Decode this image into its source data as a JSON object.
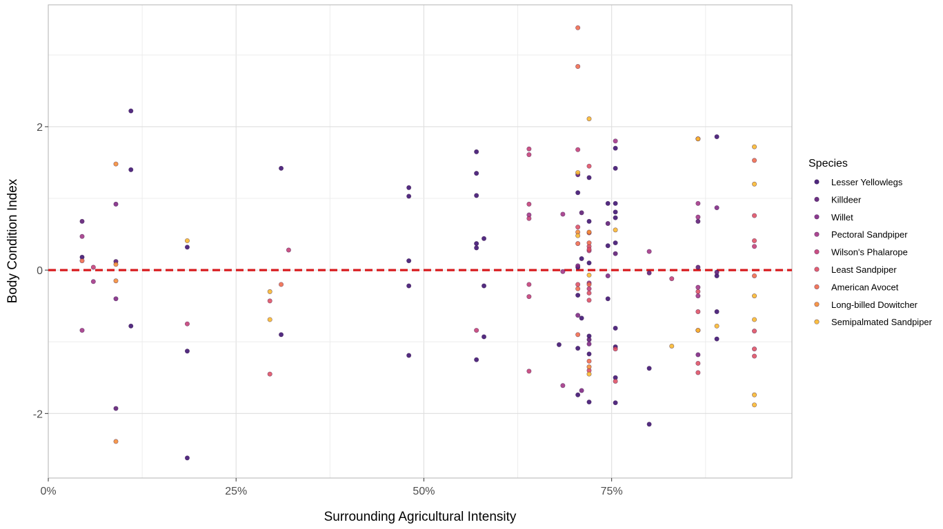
{
  "chart_data": {
    "type": "scatter",
    "xlabel": "Surrounding Agricultural Intensity",
    "ylabel": "Body Condition Index",
    "xlim": [
      0,
      0.99
    ],
    "ylim": [
      -2.9,
      3.7
    ],
    "x_ticks": [
      0,
      0.25,
      0.5,
      0.75
    ],
    "x_tick_labels": [
      "0%",
      "25%",
      "50%",
      "75%"
    ],
    "y_ticks": [
      -2,
      0,
      2
    ],
    "y_tick_labels": [
      "-2",
      "0",
      "2"
    ],
    "grid": true,
    "reference_line": {
      "y": 0,
      "style": "dashed",
      "color": "#d7191c"
    },
    "legend": {
      "title": "Species",
      "placement": "right"
    },
    "series": [
      {
        "name": "Lesser Yellowlegs",
        "color": "#3b0f70",
        "points": [
          [
            0.045,
            0.18
          ],
          [
            0.11,
            2.22
          ],
          [
            0.11,
            1.4
          ],
          [
            0.11,
            -0.78
          ],
          [
            0.185,
            0.32
          ],
          [
            0.185,
            -1.13
          ],
          [
            0.185,
            -2.62
          ],
          [
            0.31,
            1.42
          ],
          [
            0.31,
            -0.9
          ],
          [
            0.48,
            1.15
          ],
          [
            0.48,
            1.03
          ],
          [
            0.48,
            0.13
          ],
          [
            0.48,
            -0.22
          ],
          [
            0.48,
            -1.19
          ],
          [
            0.57,
            1.65
          ],
          [
            0.57,
            1.35
          ],
          [
            0.57,
            1.04
          ],
          [
            0.57,
            0.37
          ],
          [
            0.57,
            0.31
          ],
          [
            0.57,
            -1.25
          ],
          [
            0.58,
            0.44
          ],
          [
            0.58,
            -0.22
          ],
          [
            0.58,
            -0.93
          ],
          [
            0.68,
            -1.04
          ],
          [
            0.705,
            1.08
          ],
          [
            0.705,
            0.04
          ],
          [
            0.705,
            -0.35
          ],
          [
            0.705,
            -1.09
          ],
          [
            0.705,
            -1.74
          ],
          [
            0.71,
            -0.67
          ],
          [
            0.71,
            0.16
          ],
          [
            0.72,
            1.29
          ],
          [
            0.72,
            0.68
          ],
          [
            0.72,
            0.1
          ],
          [
            0.72,
            -0.92
          ],
          [
            0.72,
            -1.17
          ],
          [
            0.72,
            -1.84
          ],
          [
            0.745,
            0.93
          ],
          [
            0.745,
            0.34
          ],
          [
            0.745,
            -0.4
          ],
          [
            0.755,
            1.7
          ],
          [
            0.755,
            1.42
          ],
          [
            0.755,
            0.93
          ],
          [
            0.755,
            0.81
          ],
          [
            0.755,
            0.73
          ],
          [
            0.755,
            0.38
          ],
          [
            0.755,
            -0.81
          ],
          [
            0.755,
            -1.07
          ],
          [
            0.755,
            -1.5
          ],
          [
            0.755,
            -1.85
          ],
          [
            0.8,
            -1.37
          ],
          [
            0.8,
            -2.15
          ],
          [
            0.89,
            1.86
          ],
          [
            0.89,
            -0.08
          ],
          [
            0.89,
            -0.58
          ],
          [
            0.89,
            -0.96
          ]
        ]
      },
      {
        "name": "Killdeer",
        "color": "#5c1a74",
        "points": [
          [
            0.045,
            0.68
          ],
          [
            0.09,
            0.12
          ],
          [
            0.09,
            -1.93
          ],
          [
            0.705,
            1.33
          ],
          [
            0.71,
            0.8
          ],
          [
            0.72,
            -0.97
          ],
          [
            0.745,
            0.65
          ],
          [
            0.755,
            0.23
          ],
          [
            0.8,
            -0.04
          ],
          [
            0.865,
            0.04
          ],
          [
            0.89,
            -0.03
          ],
          [
            0.865,
            0.68
          ]
        ]
      },
      {
        "name": "Willet",
        "color": "#7e2482",
        "points": [
          [
            0.09,
            0.92
          ],
          [
            0.09,
            -0.4
          ],
          [
            0.705,
            0.06
          ],
          [
            0.705,
            -0.63
          ],
          [
            0.71,
            -1.68
          ],
          [
            0.72,
            -1.03
          ],
          [
            0.745,
            -0.08
          ],
          [
            0.865,
            -1.18
          ],
          [
            0.89,
            0.87
          ]
        ]
      },
      {
        "name": "Pectoral Sandpiper",
        "color": "#a23385",
        "points": [
          [
            0.045,
            0.47
          ],
          [
            0.045,
            -0.84
          ],
          [
            0.06,
            -0.16
          ],
          [
            0.64,
            0.77
          ],
          [
            0.685,
            0.78
          ],
          [
            0.685,
            -0.02
          ],
          [
            0.685,
            -1.61
          ],
          [
            0.72,
            -0.18
          ],
          [
            0.755,
            1.8
          ],
          [
            0.8,
            0.26
          ],
          [
            0.865,
            0.93
          ],
          [
            0.865,
            0.74
          ],
          [
            0.865,
            -0.24
          ],
          [
            0.865,
            -0.36
          ]
        ]
      },
      {
        "name": "Wilson's Phalarope",
        "color": "#c43c75",
        "points": [
          [
            0.06,
            0.04
          ],
          [
            0.185,
            -0.75
          ],
          [
            0.32,
            0.28
          ],
          [
            0.57,
            -0.84
          ],
          [
            0.64,
            1.69
          ],
          [
            0.64,
            1.61
          ],
          [
            0.64,
            0.92
          ],
          [
            0.64,
            0.72
          ],
          [
            0.64,
            -0.2
          ],
          [
            0.64,
            -0.37
          ],
          [
            0.64,
            -1.41
          ],
          [
            0.705,
            1.68
          ],
          [
            0.72,
            0.27
          ],
          [
            0.72,
            -0.26
          ],
          [
            0.83,
            -0.12
          ],
          [
            0.94,
            0.33
          ]
        ]
      },
      {
        "name": "Least Sandpiper",
        "color": "#df4e62",
        "points": [
          [
            0.295,
            -0.43
          ],
          [
            0.295,
            -1.45
          ],
          [
            0.705,
            0.6
          ],
          [
            0.705,
            -0.2
          ],
          [
            0.72,
            1.45
          ],
          [
            0.72,
            0.33
          ],
          [
            0.72,
            0.29
          ],
          [
            0.72,
            -0.32
          ],
          [
            0.72,
            -0.42
          ],
          [
            0.72,
            -1.4
          ],
          [
            0.755,
            -1.1
          ],
          [
            0.755,
            -1.55
          ],
          [
            0.865,
            -0.3
          ],
          [
            0.865,
            -0.58
          ],
          [
            0.865,
            -1.3
          ],
          [
            0.865,
            -1.43
          ],
          [
            0.94,
            0.76
          ],
          [
            0.94,
            0.41
          ],
          [
            0.94,
            -0.85
          ],
          [
            0.94,
            -1.1
          ],
          [
            0.94,
            -1.2
          ]
        ]
      },
      {
        "name": "American Avocet",
        "color": "#f06a4a",
        "points": [
          [
            0.045,
            0.13
          ],
          [
            0.31,
            -0.2
          ],
          [
            0.705,
            2.84
          ],
          [
            0.705,
            3.38
          ],
          [
            0.705,
            0.37
          ],
          [
            0.705,
            -0.9
          ],
          [
            0.705,
            -0.26
          ],
          [
            0.72,
            -1.27
          ],
          [
            0.72,
            -0.2
          ],
          [
            0.72,
            0.38
          ],
          [
            0.72,
            0.52
          ],
          [
            0.865,
            1.83
          ],
          [
            0.865,
            -0.84
          ],
          [
            0.94,
            1.53
          ],
          [
            0.94,
            -0.08
          ]
        ]
      },
      {
        "name": "Long-billed Dowitcher",
        "color": "#f58c35",
        "points": [
          [
            0.09,
            1.48
          ],
          [
            0.09,
            0.08
          ],
          [
            0.09,
            -0.15
          ],
          [
            0.09,
            -2.39
          ],
          [
            0.705,
            0.53
          ],
          [
            0.72,
            -1.35
          ],
          [
            0.72,
            0.53
          ]
        ]
      },
      {
        "name": "Semipalmated Sandpiper",
        "color": "#f9b82c",
        "points": [
          [
            0.185,
            0.41
          ],
          [
            0.295,
            -0.3
          ],
          [
            0.295,
            -0.69
          ],
          [
            0.705,
            1.36
          ],
          [
            0.705,
            0.48
          ],
          [
            0.72,
            2.11
          ],
          [
            0.72,
            -0.07
          ],
          [
            0.72,
            -1.45
          ],
          [
            0.755,
            0.56
          ],
          [
            0.83,
            -1.06
          ],
          [
            0.865,
            1.83
          ],
          [
            0.865,
            -0.84
          ],
          [
            0.89,
            -0.78
          ],
          [
            0.94,
            1.72
          ],
          [
            0.94,
            1.2
          ],
          [
            0.94,
            -0.36
          ],
          [
            0.94,
            -0.69
          ],
          [
            0.94,
            -1.74
          ],
          [
            0.94,
            -1.88
          ]
        ]
      }
    ]
  }
}
